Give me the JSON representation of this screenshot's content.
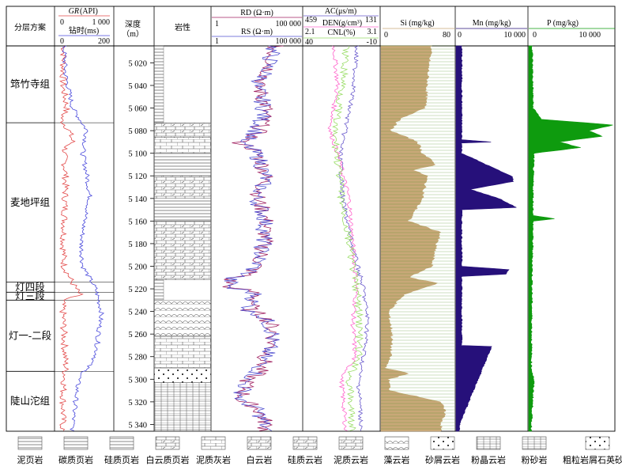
{
  "columns": {
    "strat": {
      "label": "分层方案"
    },
    "gr": {
      "name": "GR",
      "unit": "(API)",
      "min": "0",
      "max": "1 000",
      "label2": "钻时(ms)",
      "min2": "0",
      "max2": "200"
    },
    "depth": {
      "label": "深度",
      "unit": "（m）"
    },
    "litho": {
      "label": "岩性"
    },
    "rd": {
      "name": "RD (Ω·m)",
      "min": "1",
      "max": "100 000"
    },
    "rs": {
      "name": "RS (Ω·m)",
      "min": "1",
      "max": "100 000"
    },
    "ac": {
      "name": "AC(μs/m)",
      "min": "459",
      "max": "131"
    },
    "den": {
      "name": "DEN(g/cm³)",
      "min": "2.1",
      "max": "3.1"
    },
    "cnl": {
      "name": "CNL(%)",
      "min": "40",
      "max": "-10"
    },
    "si": {
      "name": "Si (mg/kg)",
      "min": "0",
      "max": "80"
    },
    "mn": {
      "name": "Mn (mg/kg)",
      "min": "0",
      "max": "10 000"
    },
    "p": {
      "name": "P (mg/kg)",
      "min": "0",
      "max": "10 000"
    }
  },
  "formations": [
    {
      "name": "筇竹寺组",
      "top": 5005,
      "bottom": 5073
    },
    {
      "name": "麦地坪组",
      "top": 5073,
      "bottom": 5214
    },
    {
      "name": "灯四段",
      "top": 5214,
      "bottom": 5223
    },
    {
      "name": "灯三段",
      "top": 5223,
      "bottom": 5230
    },
    {
      "name": "灯一-二段",
      "top": 5230,
      "bottom": 5293
    },
    {
      "name": "陡山沱组",
      "top": 5293,
      "bottom": 5346
    }
  ],
  "depth_ticks": [
    "5 020",
    "5 040",
    "5 060",
    "5 080",
    "5 100",
    "5 120",
    "5 140",
    "5 160",
    "5 180",
    "5 200",
    "5 220",
    "5 240",
    "5 260",
    "5 280",
    "5 300",
    "5 320",
    "5 340"
  ],
  "chart_data": {
    "type": "well-log",
    "depth_axis": {
      "label": "深度",
      "unit": "m",
      "range": [
        5005,
        5346
      ]
    },
    "tracks": [
      {
        "name": "GR",
        "unit": "API",
        "range": [
          0,
          1000
        ],
        "color": "#e34a4a",
        "depth": [
          5005,
          5020,
          5040,
          5060,
          5070,
          5080,
          5090,
          5095,
          5100,
          5120,
          5140,
          5160,
          5180,
          5200,
          5215,
          5225,
          5230,
          5260,
          5290,
          5310,
          5340
        ],
        "values": [
          150,
          140,
          130,
          200,
          100,
          240,
          300,
          180,
          150,
          180,
          170,
          160,
          140,
          150,
          300,
          420,
          120,
          150,
          180,
          140,
          130
        ]
      },
      {
        "name": "钻时",
        "unit": "ms",
        "range": [
          0,
          200
        ],
        "color": "#4a4adc",
        "depth": [
          5005,
          5030,
          5060,
          5080,
          5100,
          5120,
          5140,
          5160,
          5180,
          5200,
          5220,
          5240,
          5260,
          5280,
          5300,
          5320,
          5340
        ],
        "values": [
          30,
          35,
          60,
          110,
          95,
          110,
          120,
          100,
          90,
          95,
          140,
          160,
          150,
          140,
          80,
          70,
          60
        ]
      },
      {
        "name": "RD",
        "unit": "Ω·m",
        "scale": "log",
        "range": [
          1,
          100000
        ],
        "color": "#a02060",
        "depth": [
          5005,
          5020,
          5040,
          5060,
          5080,
          5090,
          5100,
          5120,
          5140,
          5160,
          5180,
          5200,
          5210,
          5220,
          5225,
          5240,
          5260,
          5280,
          5300,
          5320,
          5340
        ],
        "values": [
          3000,
          2000,
          300,
          1000,
          400,
          10,
          300,
          1000,
          300,
          1000,
          800,
          300,
          10,
          10,
          300,
          100,
          3000,
          1000,
          100,
          30,
          1000
        ]
      },
      {
        "name": "RS",
        "unit": "Ω·m",
        "scale": "log",
        "range": [
          1,
          100000
        ],
        "color": "#5050d0",
        "depth": [
          5005,
          5020,
          5040,
          5060,
          5080,
          5090,
          5100,
          5120,
          5140,
          5160,
          5180,
          5200,
          5210,
          5220,
          5225,
          5240,
          5260,
          5280,
          5300,
          5320,
          5340
        ],
        "values": [
          2500,
          1500,
          250,
          800,
          300,
          10,
          250,
          900,
          250,
          900,
          700,
          250,
          10,
          10,
          250,
          80,
          2500,
          800,
          80,
          30,
          800
        ]
      },
      {
        "name": "AC",
        "unit": "μs/m",
        "range": [
          459,
          131
        ],
        "color": "#6a5acd",
        "depth": [
          5005,
          5040,
          5080,
          5100,
          5140,
          5180,
          5220,
          5250,
          5280,
          5300,
          5340
        ],
        "values": [
          230,
          240,
          280,
          300,
          290,
          250,
          200,
          180,
          200,
          220,
          210
        ]
      },
      {
        "name": "DEN",
        "unit": "g/cm³",
        "range": [
          2.1,
          3.1
        ],
        "color": "#ff66cc",
        "depth": [
          5005,
          5040,
          5080,
          5100,
          5140,
          5180,
          5220,
          5250,
          5280,
          5300,
          5340
        ],
        "values": [
          2.5,
          2.55,
          2.45,
          2.55,
          2.7,
          2.75,
          2.8,
          2.75,
          2.78,
          2.6,
          2.65
        ]
      },
      {
        "name": "CNL",
        "unit": "%",
        "range": [
          40,
          -10
        ],
        "color": "#99dd66",
        "depth": [
          5005,
          5040,
          5080,
          5100,
          5140,
          5180,
          5220,
          5250,
          5280,
          5300,
          5340
        ],
        "values": [
          12,
          14,
          20,
          18,
          15,
          10,
          5,
          3,
          4,
          10,
          8
        ]
      },
      {
        "name": "Si",
        "unit": "mg/kg",
        "range": [
          0,
          80
        ],
        "color": "#c8a878",
        "depth": [
          5005,
          5020,
          5040,
          5060,
          5070,
          5080,
          5090,
          5100,
          5110,
          5115,
          5120,
          5140,
          5160,
          5170,
          5180,
          5200,
          5210,
          5215,
          5225,
          5240,
          5260,
          5280,
          5290,
          5295,
          5300,
          5310,
          5320,
          5330,
          5340
        ],
        "values": [
          55,
          52,
          50,
          48,
          20,
          10,
          40,
          45,
          60,
          35,
          50,
          45,
          30,
          65,
          60,
          55,
          30,
          62,
          25,
          8,
          12,
          10,
          5,
          30,
          8,
          10,
          65,
          70,
          65
        ]
      },
      {
        "name": "Mn",
        "unit": "mg/kg",
        "range": [
          0,
          10000
        ],
        "color": "#26107a",
        "depth": [
          5005,
          5088,
          5090,
          5091,
          5100,
          5121,
          5125,
          5132,
          5140,
          5148,
          5150,
          5160,
          5200,
          5203,
          5207,
          5209,
          5270,
          5271,
          5340
        ],
        "values": [
          800,
          800,
          5000,
          800,
          800,
          8000,
          8000,
          2000,
          6000,
          8500,
          800,
          800,
          800,
          7500,
          7000,
          800,
          800,
          5000,
          500
        ]
      },
      {
        "name": "P",
        "unit": "mg/kg",
        "range": [
          0,
          10000
        ],
        "color": "#0e9b0e",
        "depth": [
          5005,
          5060,
          5070,
          5075,
          5080,
          5085,
          5090,
          5095,
          5100,
          5120,
          5155,
          5158,
          5160,
          5200,
          5290,
          5300,
          5340
        ],
        "values": [
          400,
          500,
          1500,
          9800,
          7000,
          8500,
          3500,
          6000,
          600,
          500,
          500,
          3000,
          500,
          400,
          300,
          600,
          300
        ]
      }
    ]
  },
  "legend": [
    {
      "label": "泥页岩",
      "pattern": "shale"
    },
    {
      "label": "碳质页岩",
      "pattern": "carbon-shale"
    },
    {
      "label": "硅质页岩",
      "pattern": "si-shale"
    },
    {
      "label": "白云质页岩",
      "pattern": "dolo-shale"
    },
    {
      "label": "泥质灰岩",
      "pattern": "argil-lime"
    },
    {
      "label": "白云岩",
      "pattern": "dolomite"
    },
    {
      "label": "硅质云岩",
      "pattern": "si-dolomite"
    },
    {
      "label": "泥质云岩",
      "pattern": "argil-dolomite"
    },
    {
      "label": "藻云岩",
      "pattern": "algal-dolomite"
    },
    {
      "label": "砂屑云岩",
      "pattern": "sand-dolomite"
    },
    {
      "label": "粉晶云岩",
      "pattern": "silt-dolomite"
    },
    {
      "label": "粉砂岩",
      "pattern": "siltstone"
    },
    {
      "label": "粗粒岩屑石英砂岩",
      "pattern": "sandstone"
    }
  ]
}
